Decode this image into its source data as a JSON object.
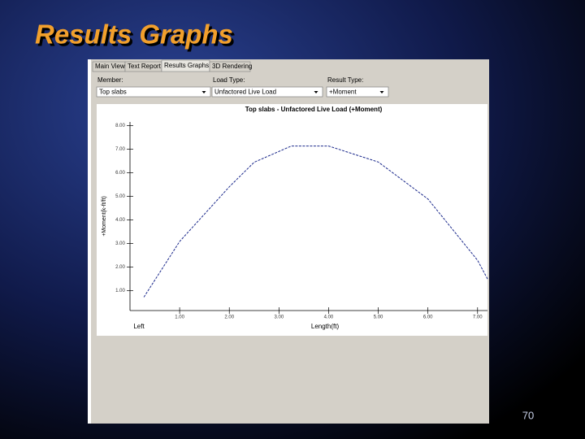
{
  "slide": {
    "title": "Results Graphs",
    "page_number": "70"
  },
  "window": {
    "tabs": [
      "Main View",
      "Text Report",
      "Results Graphs",
      "3D Rendering"
    ],
    "active_tab": 2,
    "fields": [
      {
        "label": "Member:",
        "value": "Top slabs"
      },
      {
        "label": "Load Type:",
        "value": "Unfactored Live Load"
      },
      {
        "label": "Result Type:",
        "value": "+Moment"
      }
    ]
  },
  "chart_data": {
    "type": "line",
    "title": "Top slabs - Unfactored Live Load (+Moment)",
    "x_label": "Length(ft)",
    "y_label": "+Moment(k-ft/ft)",
    "x_start_label": "Left",
    "color": "#1c2a8c",
    "x": [
      0.28,
      1.0,
      2.0,
      2.5,
      3.25,
      4.0,
      5.0,
      6.0,
      7.0,
      7.2
    ],
    "values": [
      0.72,
      3.08,
      5.4,
      6.44,
      7.13,
      7.13,
      6.45,
      4.88,
      2.28,
      1.49
    ],
    "xlim": [
      0,
      7.2
    ],
    "ylim": [
      0.15,
      8.15
    ],
    "xticks": [
      {
        "value": 1,
        "label": "1.00"
      },
      {
        "value": 2,
        "label": "2.00"
      },
      {
        "value": 3,
        "label": "3.00"
      },
      {
        "value": 4,
        "label": "4.00"
      },
      {
        "value": 5,
        "label": "5.00"
      },
      {
        "value": 6,
        "label": "6.00"
      },
      {
        "value": 7,
        "label": "7.00"
      }
    ],
    "yticks": [
      {
        "value": 1,
        "label": "1.00"
      },
      {
        "value": 2,
        "label": "2.00"
      },
      {
        "value": 3,
        "label": "3.00"
      },
      {
        "value": 4,
        "label": "4.00"
      },
      {
        "value": 5,
        "label": "5.00"
      },
      {
        "value": 6,
        "label": "6.00"
      },
      {
        "value": 7,
        "label": "7.00"
      },
      {
        "value": 8,
        "label": "8.00"
      }
    ]
  }
}
